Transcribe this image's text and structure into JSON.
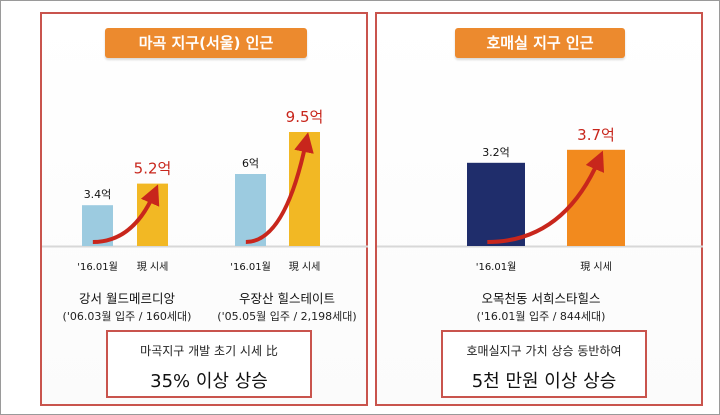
{
  "panels": [
    {
      "title": "마곡 지구(서울) 인근",
      "summary_line1": "마곡지구 개발 초기 시세 比",
      "summary_line2": "35% 이상 상승",
      "complexes": [
        {
          "name": "강서 월드메르디앙",
          "sub": "('06.03월 입주 / 160세대)",
          "before_label": "'16.01월",
          "now_label": "現 시세",
          "before_value_text": "3.4억",
          "now_value_text": "5.2억"
        },
        {
          "name": "우장산 힐스테이트",
          "sub": "('05.05월 입주 / 2,198세대)",
          "before_label": "'16.01월",
          "now_label": "現 시세",
          "before_value_text": "6억",
          "now_value_text": "9.5억"
        }
      ]
    },
    {
      "title": "호매실 지구 인근",
      "summary_line1": "호매실지구 가치 상승 동반하여",
      "summary_line2": "5천 만원 이상 상승",
      "complexes": [
        {
          "name": "오목천동 서희스타힐스",
          "sub": "('16.01월 입주 / 844세대)",
          "before_label": "'16.01월",
          "now_label": "現 시세",
          "before_value_text": "3.2억",
          "now_value_text": "3.7억"
        }
      ]
    }
  ],
  "chart_data": [
    {
      "type": "bar",
      "categories": [
        "'16.01월",
        "現 시세"
      ],
      "series": [
        {
          "name": "강서 월드메르디앙",
          "values": [
            3.4,
            5.2
          ]
        },
        {
          "name": "우장산 힐스테이트",
          "values": [
            6,
            9.5
          ]
        }
      ],
      "unit": "억",
      "colors": {
        "before": "#9ccbe0",
        "now": "#f2b824",
        "arrow": "#c8261c",
        "now_label": "#c8261c"
      }
    },
    {
      "type": "bar",
      "categories": [
        "'16.01월",
        "現 시세"
      ],
      "series": [
        {
          "name": "오목천동 서희스타힐스",
          "values": [
            3.2,
            3.7
          ]
        }
      ],
      "unit": "억",
      "colors": {
        "before": "#1f2d6b",
        "now": "#f28a1e",
        "arrow": "#c8261c",
        "now_label": "#c8261c"
      }
    }
  ]
}
